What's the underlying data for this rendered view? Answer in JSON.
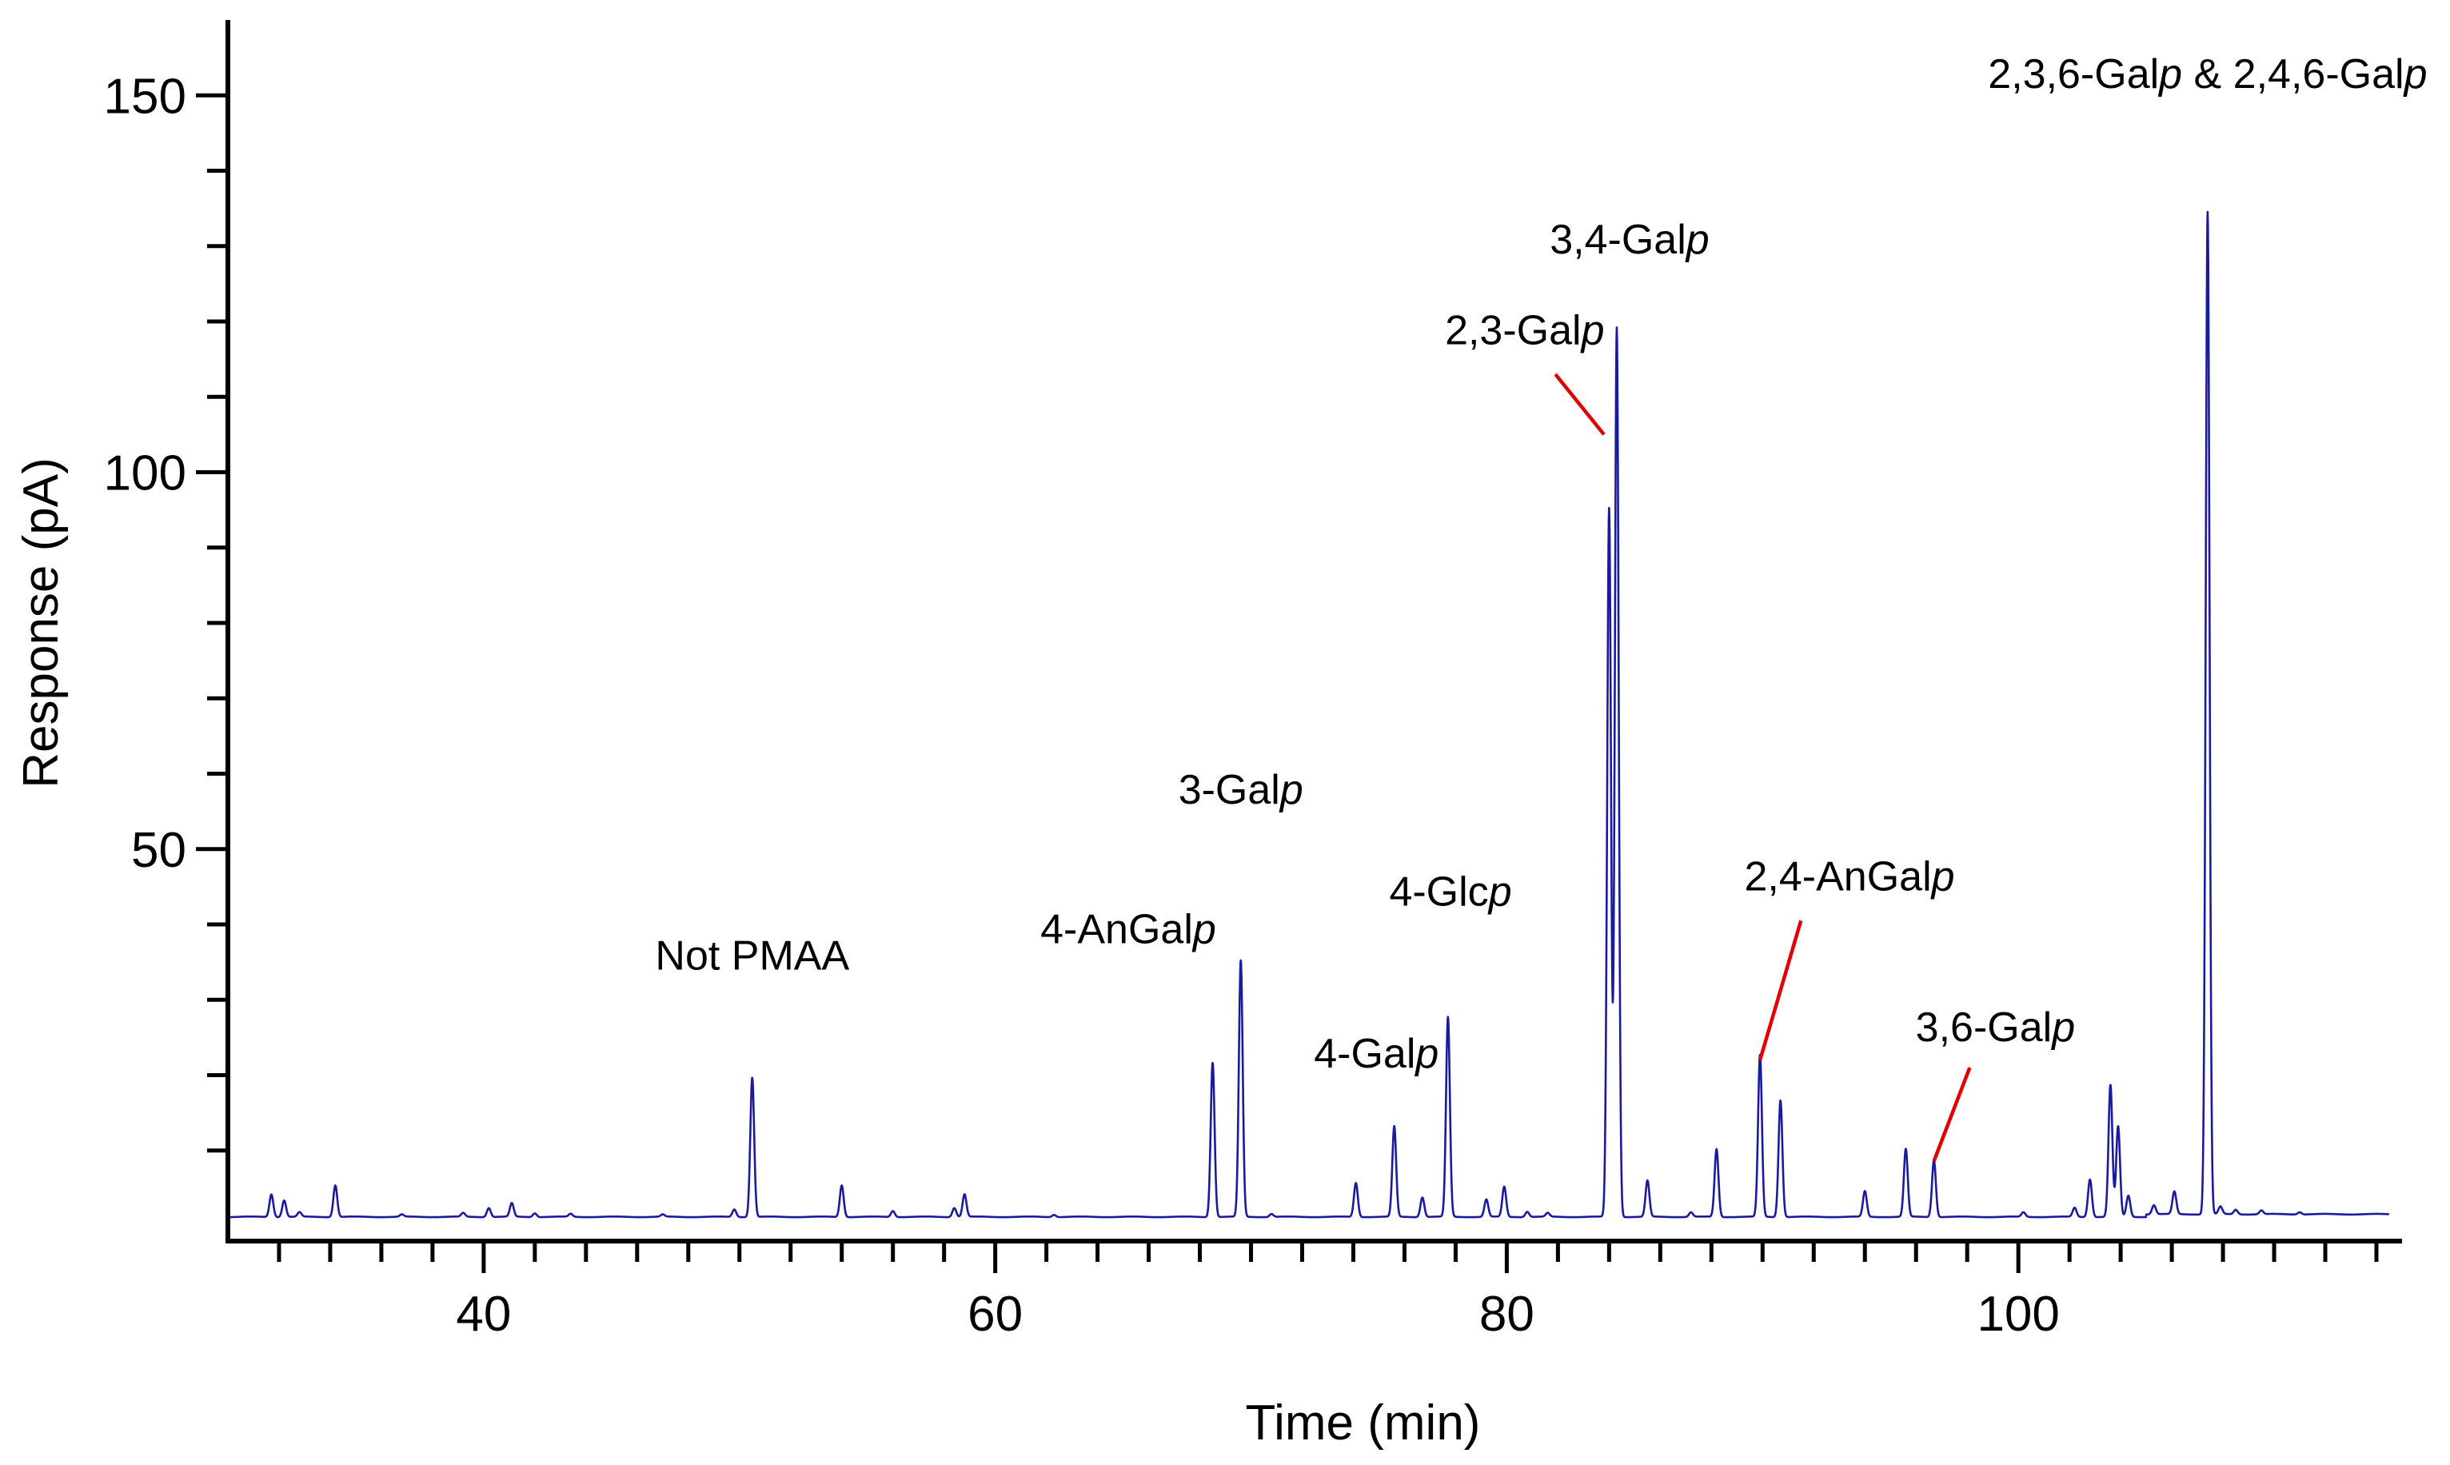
{
  "chart_data": {
    "type": "line",
    "title": "",
    "xlabel": "Time (min)",
    "ylabel": "Response (pA)",
    "xlim": [
      30,
      115
    ],
    "ylim": [
      0,
      160
    ],
    "x_ticks": [
      40,
      60,
      80,
      100
    ],
    "y_ticks": [
      50,
      100,
      150
    ],
    "x_tick_labels": [
      "40",
      "60",
      "80",
      "100"
    ],
    "y_tick_labels": [
      "50",
      "100",
      "150"
    ],
    "x_minor_step": 2,
    "y_minor_step": 10,
    "baseline": 1.2,
    "colors": {
      "trace": "#1a1a9e",
      "axis": "#000000",
      "leader": "#e00000"
    },
    "peaks": [
      {
        "t": 31.7,
        "h": 3.0
      },
      {
        "t": 32.2,
        "h": 2.2
      },
      {
        "t": 32.8,
        "h": 0.6
      },
      {
        "t": 34.2,
        "h": 4.2
      },
      {
        "t": 36.8,
        "h": 0.3
      },
      {
        "t": 39.2,
        "h": 0.5
      },
      {
        "t": 40.2,
        "h": 1.2
      },
      {
        "t": 41.1,
        "h": 1.8
      },
      {
        "t": 42.0,
        "h": 0.5
      },
      {
        "t": 43.4,
        "h": 0.4
      },
      {
        "t": 47.0,
        "h": 0.3
      },
      {
        "t": 49.8,
        "h": 1.0
      },
      {
        "t": 50.5,
        "h": 18.5
      },
      {
        "t": 54.0,
        "h": 4.2
      },
      {
        "t": 56.0,
        "h": 0.8
      },
      {
        "t": 58.4,
        "h": 1.2
      },
      {
        "t": 58.8,
        "h": 3.0
      },
      {
        "t": 62.3,
        "h": 0.3
      },
      {
        "t": 68.5,
        "h": 20.5
      },
      {
        "t": 69.6,
        "h": 34.0
      },
      {
        "t": 70.8,
        "h": 0.4
      },
      {
        "t": 74.1,
        "h": 4.5
      },
      {
        "t": 75.6,
        "h": 12.0
      },
      {
        "t": 76.7,
        "h": 2.6
      },
      {
        "t": 77.7,
        "h": 26.5
      },
      {
        "t": 79.2,
        "h": 2.3
      },
      {
        "t": 79.9,
        "h": 4.0
      },
      {
        "t": 80.8,
        "h": 0.7
      },
      {
        "t": 81.6,
        "h": 0.5
      },
      {
        "t": 84.0,
        "h": 94.0
      },
      {
        "t": 84.3,
        "h": 118.0
      },
      {
        "t": 85.5,
        "h": 4.8
      },
      {
        "t": 87.2,
        "h": 0.6
      },
      {
        "t": 88.2,
        "h": 9.0
      },
      {
        "t": 89.9,
        "h": 21.5
      },
      {
        "t": 90.7,
        "h": 15.5
      },
      {
        "t": 94.0,
        "h": 3.4
      },
      {
        "t": 95.6,
        "h": 9.0
      },
      {
        "t": 96.7,
        "h": 7.5
      },
      {
        "t": 100.2,
        "h": 0.6
      },
      {
        "t": 102.2,
        "h": 1.2
      },
      {
        "t": 102.8,
        "h": 5.0
      },
      {
        "t": 103.6,
        "h": 17.5
      },
      {
        "t": 103.9,
        "h": 12.0
      },
      {
        "t": 104.3,
        "h": 2.8
      },
      {
        "t": 105.3,
        "h": 1.2
      },
      {
        "t": 106.1,
        "h": 3.0
      },
      {
        "t": 107.4,
        "h": 133.0
      },
      {
        "t": 107.9,
        "h": 1.0
      },
      {
        "t": 108.5,
        "h": 0.6
      },
      {
        "t": 109.5,
        "h": 0.5
      },
      {
        "t": 111.0,
        "h": 0.3
      }
    ],
    "annotations": [
      {
        "name": "Not PMAA",
        "prefix": "Not PMAA",
        "italic": "",
        "x": 50.5,
        "y": 34,
        "leader": null
      },
      {
        "name": "4-AnGalp",
        "prefix": "4-AnGal",
        "italic": "p",
        "x": 65.2,
        "y": 37.5,
        "leader": null
      },
      {
        "name": "3-Galp",
        "prefix": "3-Gal",
        "italic": "p",
        "x": 69.6,
        "y": 56,
        "leader": null
      },
      {
        "name": "4-Galp",
        "prefix": "4-Gal",
        "italic": "p",
        "x": 74.9,
        "y": 21,
        "leader": null
      },
      {
        "name": "4-Glcp",
        "prefix": "4-Glc",
        "italic": "p",
        "x": 77.8,
        "y": 42.5,
        "leader": null
      },
      {
        "name": "2,3-Galp",
        "prefix": "2,3-Gal",
        "italic": "p",
        "x": 80.7,
        "y": 117,
        "leader": [
          81.9,
          113,
          83.8,
          105
        ]
      },
      {
        "name": "3,4-Galp",
        "prefix": "3,4-Gal",
        "italic": "p",
        "x": 84.8,
        "y": 129,
        "leader": null
      },
      {
        "name": "2,4-AnGalp",
        "prefix": "2,4-AnGal",
        "italic": "p",
        "x": 93.4,
        "y": 44.5,
        "leader": [
          91.5,
          40.5,
          89.9,
          22.0
        ]
      },
      {
        "name": "3,6-Galp",
        "prefix": "3,6-Gal",
        "italic": "p",
        "x": 99.1,
        "y": 24.5,
        "leader": [
          98.1,
          21.0,
          96.7,
          8.6
        ]
      },
      {
        "name": "2,3,6-Galp & 2,4,6-Galp",
        "prefix": "2,3,6-Gal",
        "italic": "p",
        "mid": " & 2,4,6-Gal",
        "italic2": "p",
        "x": 107.4,
        "y": 151,
        "leader": null
      }
    ]
  }
}
